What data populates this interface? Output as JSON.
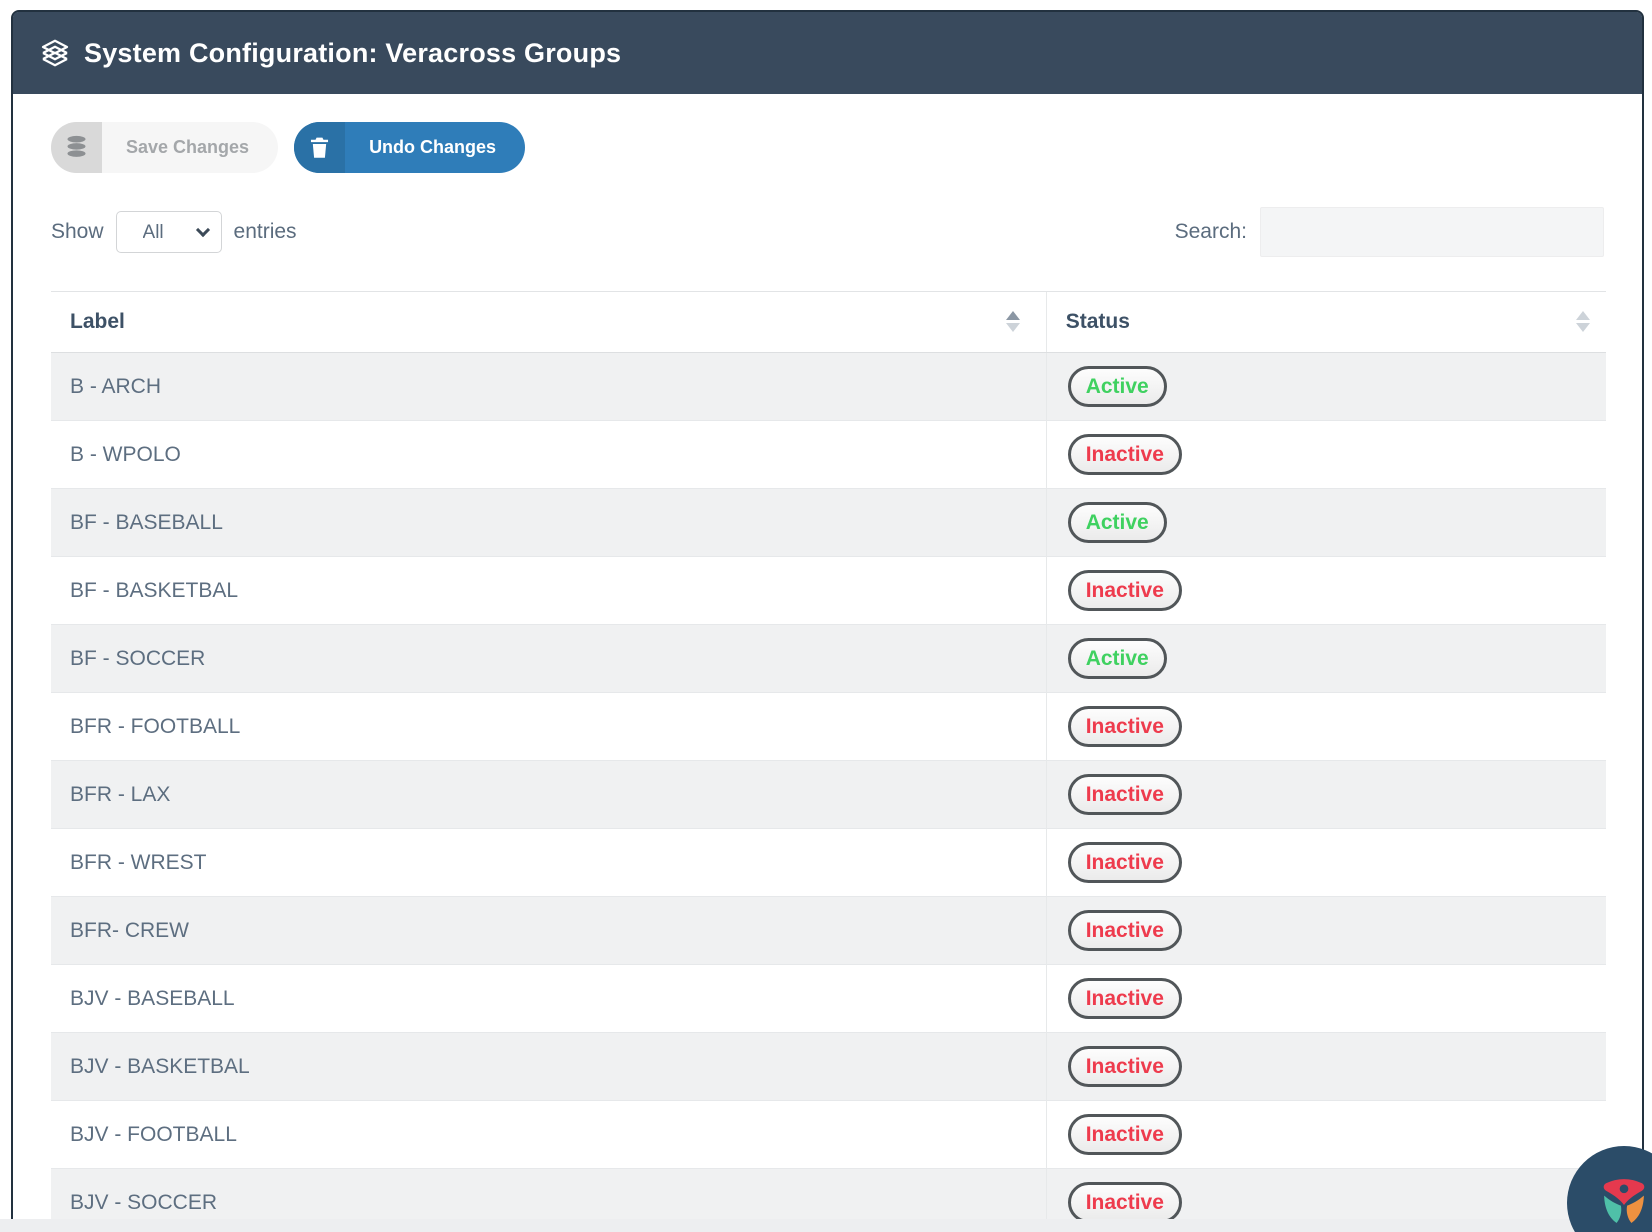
{
  "window": {
    "title": "System Configuration: Veracross Groups"
  },
  "toolbar": {
    "save": {
      "label": "Save Changes",
      "enabled": false,
      "icon": "database-icon"
    },
    "undo": {
      "label": "Undo Changes",
      "enabled": true,
      "icon": "trash-icon"
    }
  },
  "length_control": {
    "show_label": "Show",
    "selected_option": "All",
    "entries_label": "entries"
  },
  "search": {
    "label": "Search:",
    "value": ""
  },
  "table": {
    "columns": [
      {
        "label": "Label",
        "sort": "asc"
      },
      {
        "label": "Status",
        "sort": "none"
      }
    ],
    "rows": [
      {
        "label": "B - ARCH",
        "status": "Active"
      },
      {
        "label": "B - WPOLO",
        "status": "Inactive"
      },
      {
        "label": "BF - BASEBALL",
        "status": "Active"
      },
      {
        "label": "BF - BASKETBAL",
        "status": "Inactive"
      },
      {
        "label": "BF - SOCCER",
        "status": "Active"
      },
      {
        "label": "BFR - FOOTBALL",
        "status": "Inactive"
      },
      {
        "label": "BFR - LAX",
        "status": "Inactive"
      },
      {
        "label": "BFR - WREST",
        "status": "Inactive"
      },
      {
        "label": "BFR- CREW",
        "status": "Inactive"
      },
      {
        "label": "BJV - BASEBALL",
        "status": "Inactive"
      },
      {
        "label": "BJV - BASKETBAL",
        "status": "Inactive"
      },
      {
        "label": "BJV - FOOTBALL",
        "status": "Inactive"
      },
      {
        "label": "BJV - SOCCER",
        "status": "Inactive"
      }
    ],
    "status_colors": {
      "Active": "#3fd160",
      "Inactive": "#ee3b4d"
    }
  },
  "colors": {
    "header_bg": "#394a5d",
    "accent_blue": "#2f7db9",
    "card_border": "#22313f",
    "stripe_gray": "#f0f1f2",
    "logo_navy": "#2b4c68",
    "logo_red": "#e5394e",
    "logo_teal": "#4fc0a8",
    "logo_orange": "#ee9140"
  }
}
